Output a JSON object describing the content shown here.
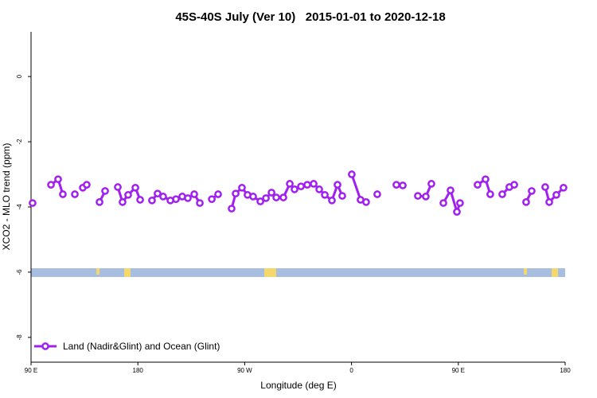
{
  "chart_data": {
    "type": "line",
    "title": "45S-40S July (Ver 10)   2015-01-01 to 2020-12-18",
    "x_label": "Longitude (deg E)",
    "y_label": "XCO2 - MLO trend (ppm)",
    "xlim": [
      90,
      540
    ],
    "ylim": [
      -8.76,
      1.37
    ],
    "xticks": [
      {
        "value": 90,
        "label": "90 E"
      },
      {
        "value": 180,
        "label": "180"
      },
      {
        "value": 270,
        "label": "90 W"
      },
      {
        "value": 360,
        "label": "0"
      },
      {
        "value": 450,
        "label": "90 E"
      },
      {
        "value": 540,
        "label": "180"
      }
    ],
    "yticks": [
      0,
      -2,
      -4,
      -6,
      -8
    ],
    "legend": "bottom-left",
    "series": [
      {
        "name": "Land (Nadir&Glint) and Ocean (Glint)",
        "color": "#a020f0",
        "x": [
          91.3,
          null,
          106.8,
          112.8,
          116.8,
          null,
          126.9,
          null,
          133.6,
          136.9,
          null,
          147.7,
          152.4,
          null,
          163.1,
          167.1,
          171.8,
          177.9,
          181.9,
          null,
          191.9,
          196.6,
          201.3,
          207.4,
          212.1,
          217.4,
          222.1,
          227.5,
          232.2,
          null,
          242.3,
          247.6,
          null,
          259.0,
          262.4,
          267.7,
          272.4,
          277.1,
          283.2,
          287.9,
          292.6,
          296.6,
          302.6,
          308.0,
          312.0,
          317.4,
          322.7,
          328.1,
          332.8,
          337.5,
          343.5,
          348.2,
          352.2,
          null,
          360.2,
          367.6,
          372.3,
          null,
          381.7,
          null,
          397.8,
          403.2,
          null,
          415.9,
          422.6,
          427.3,
          null,
          437.4,
          443.4,
          448.8,
          451.4,
          null,
          466.2,
          472.9,
          476.9,
          null,
          487.0,
          493.0,
          497.1,
          null,
          507.1,
          511.8,
          null,
          523.2,
          526.6,
          532.6,
          538.6
        ],
        "values": [
          -3.88,
          null,
          -3.32,
          -3.15,
          -3.61,
          null,
          -3.61,
          null,
          -3.41,
          -3.32,
          null,
          -3.85,
          -3.51,
          null,
          -3.39,
          -3.85,
          -3.63,
          -3.41,
          -3.78,
          null,
          -3.8,
          -3.59,
          -3.68,
          -3.8,
          -3.76,
          -3.68,
          -3.73,
          -3.61,
          -3.88,
          null,
          -3.76,
          -3.61,
          null,
          -4.05,
          -3.59,
          -3.41,
          -3.63,
          -3.68,
          -3.83,
          -3.73,
          -3.56,
          -3.71,
          -3.71,
          -3.29,
          -3.46,
          -3.37,
          -3.32,
          -3.29,
          -3.46,
          -3.63,
          -3.8,
          -3.32,
          -3.66,
          null,
          -3.0,
          -3.78,
          -3.85,
          null,
          -3.61,
          null,
          -3.32,
          -3.34,
          null,
          -3.66,
          -3.68,
          -3.29,
          null,
          -3.88,
          -3.49,
          -4.15,
          -3.88,
          null,
          -3.32,
          -3.15,
          -3.61,
          null,
          -3.61,
          -3.39,
          -3.32,
          null,
          -3.85,
          -3.51,
          null,
          -3.39,
          -3.85,
          -3.63,
          -3.41
        ]
      }
    ]
  }
}
